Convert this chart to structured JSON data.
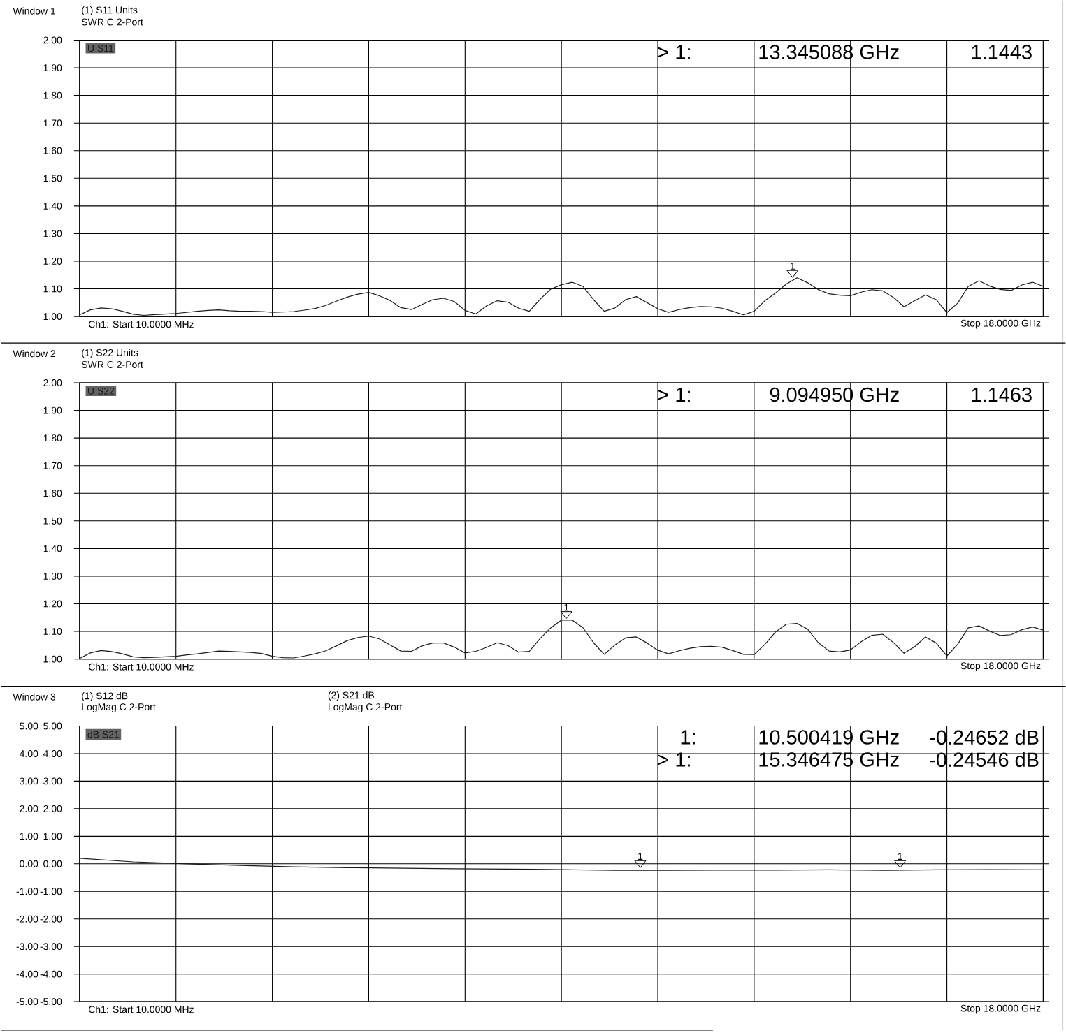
{
  "chart_data": [
    {
      "type": "line",
      "title": "Window 1",
      "subtitle": "(1) S11 Units",
      "categories": [
        null,
        null,
        null,
        null,
        null,
        null,
        null,
        null,
        null,
        null,
        null,
        null,
        null,
        null,
        null,
        null,
        null,
        null,
        null,
        null,
        null,
        null,
        null,
        null,
        null,
        null,
        null,
        null,
        null,
        null,
        null,
        null,
        null,
        null,
        null,
        null,
        null,
        null,
        null,
        null,
        null,
        null,
        null,
        null,
        null,
        null,
        null,
        null,
        null,
        null,
        null,
        null,
        null,
        null,
        null,
        null,
        null,
        null,
        null,
        null,
        null,
        null,
        null,
        null,
        null,
        null,
        null,
        null,
        null,
        null,
        null,
        null,
        null,
        null,
        null,
        null,
        null,
        null,
        null,
        null,
        null,
        null,
        null,
        null,
        null,
        null,
        null,
        null,
        null,
        null,
        null
      ],
      "series": [
        {
          "name": "U S11",
          "color": "#1a1a1a",
          "values": [
            1.006,
            1.024,
            1.031,
            1.028,
            1.019,
            1.008,
            1.004,
            1.007,
            1.009,
            1.011,
            1.015,
            1.019,
            1.022,
            1.024,
            1.021,
            1.019,
            1.019,
            1.018,
            1.015,
            1.016,
            1.018,
            1.023,
            1.029,
            1.04,
            1.056,
            1.07,
            1.081,
            1.087,
            1.075,
            1.058,
            1.032,
            1.025,
            1.044,
            1.061,
            1.066,
            1.054,
            1.022,
            1.009,
            1.038,
            1.057,
            1.052,
            1.03,
            1.019,
            1.062,
            1.099,
            1.115,
            1.124,
            1.109,
            1.061,
            1.019,
            1.031,
            1.061,
            1.072,
            1.05,
            1.028,
            1.015,
            1.025,
            1.032,
            1.036,
            1.035,
            1.03,
            1.019,
            1.006,
            1.019,
            1.057,
            1.085,
            1.117,
            1.14,
            1.122,
            1.097,
            1.082,
            1.077,
            1.075,
            1.088,
            1.097,
            1.093,
            1.069,
            1.035,
            1.057,
            1.078,
            1.061,
            1.014,
            1.048,
            1.109,
            1.129,
            1.11,
            1.098,
            1.094,
            1.114,
            1.124,
            1.109
          ]
        }
      ],
      "ylim": [
        1.0,
        2.0
      ],
      "yticks": [
        {
          "value": 1.0,
          "label": "1.00"
        },
        {
          "value": 1.1,
          "label": "1.10"
        },
        {
          "value": 1.2,
          "label": "1.20"
        },
        {
          "value": 1.3,
          "label": "1.30"
        },
        {
          "value": 1.4,
          "label": "1.40"
        },
        {
          "value": 1.5,
          "label": "1.50"
        },
        {
          "value": 1.6,
          "label": "1.60"
        },
        {
          "value": 1.7,
          "label": "1.70"
        },
        {
          "value": 1.8,
          "label": "1.80"
        },
        {
          "value": 1.9,
          "label": "1.90"
        },
        {
          "value": 2.0,
          "label": "2.00"
        }
      ],
      "grid": true,
      "annotations": [
        "SWR C  2-Port",
        "> 1:",
        "13.345088 GHz",
        "1.1443",
        "Ch1: Start 10.0000 MHz",
        "Stop 18.0000 GHz",
        "1"
      ]
    },
    {
      "type": "line",
      "title": "Window 2",
      "subtitle": "(1) S22 Units",
      "categories": [
        null,
        null,
        null,
        null,
        null,
        null,
        null,
        null,
        null,
        null,
        null,
        null,
        null,
        null,
        null,
        null,
        null,
        null,
        null,
        null,
        null,
        null,
        null,
        null,
        null,
        null,
        null,
        null,
        null,
        null,
        null,
        null,
        null,
        null,
        null,
        null,
        null,
        null,
        null,
        null,
        null,
        null,
        null,
        null,
        null,
        null,
        null,
        null,
        null,
        null,
        null,
        null,
        null,
        null,
        null,
        null,
        null,
        null,
        null,
        null,
        null,
        null,
        null,
        null,
        null,
        null,
        null,
        null,
        null,
        null,
        null,
        null,
        null,
        null,
        null,
        null,
        null,
        null,
        null,
        null,
        null,
        null,
        null,
        null,
        null,
        null,
        null,
        null,
        null,
        null,
        null
      ],
      "series": [
        {
          "name": "U S22",
          "color": "#1a1a1a",
          "values": [
            1.002,
            1.022,
            1.031,
            1.027,
            1.019,
            1.008,
            1.005,
            1.006,
            1.008,
            1.01,
            1.015,
            1.019,
            1.024,
            1.029,
            1.028,
            1.026,
            1.024,
            1.02,
            1.01,
            1.005,
            1.004,
            1.011,
            1.019,
            1.03,
            1.048,
            1.067,
            1.078,
            1.083,
            1.073,
            1.051,
            1.029,
            1.028,
            1.048,
            1.058,
            1.058,
            1.043,
            1.022,
            1.028,
            1.042,
            1.059,
            1.049,
            1.025,
            1.028,
            1.074,
            1.113,
            1.141,
            1.141,
            1.114,
            1.059,
            1.017,
            1.051,
            1.077,
            1.08,
            1.058,
            1.032,
            1.019,
            1.03,
            1.039,
            1.045,
            1.046,
            1.043,
            1.031,
            1.017,
            1.016,
            1.053,
            1.098,
            1.126,
            1.129,
            1.108,
            1.059,
            1.029,
            1.026,
            1.033,
            1.063,
            1.086,
            1.09,
            1.06,
            1.021,
            1.045,
            1.08,
            1.058,
            1.011,
            1.053,
            1.113,
            1.12,
            1.101,
            1.085,
            1.088,
            1.106,
            1.116,
            1.105
          ]
        }
      ],
      "ylim": [
        1.0,
        2.0
      ],
      "yticks": [
        {
          "value": 1.0,
          "label": "1.00"
        },
        {
          "value": 1.1,
          "label": "1.10"
        },
        {
          "value": 1.2,
          "label": "1.20"
        },
        {
          "value": 1.3,
          "label": "1.30"
        },
        {
          "value": 1.4,
          "label": "1.40"
        },
        {
          "value": 1.5,
          "label": "1.50"
        },
        {
          "value": 1.6,
          "label": "1.60"
        },
        {
          "value": 1.7,
          "label": "1.70"
        },
        {
          "value": 1.8,
          "label": "1.80"
        },
        {
          "value": 1.9,
          "label": "1.90"
        },
        {
          "value": 2.0,
          "label": "2.00"
        }
      ],
      "grid": true,
      "annotations": [
        "SWR C  2-Port",
        "> 1:",
        "9.094950 GHz",
        "1.1463",
        "Ch1: Start 10.0000 MHz",
        "Stop 18.0000 GHz",
        "1"
      ]
    },
    {
      "type": "line",
      "title": "Window 3",
      "subtitle": "(1) S12 dB",
      "categories": [
        null,
        null,
        null,
        null,
        null,
        null,
        null,
        null,
        null,
        null,
        null,
        null,
        null,
        null,
        null,
        null,
        null,
        null,
        null
      ],
      "series": [
        {
          "name": "dB S21",
          "color": "#1a1a1a",
          "values": [
            0.2,
            0.07,
            0.0,
            -0.06,
            -0.11,
            -0.14,
            -0.16,
            -0.18,
            -0.19,
            -0.21,
            -0.24,
            -0.24,
            -0.23,
            -0.23,
            -0.22,
            -0.24,
            -0.22,
            -0.21,
            -0.22
          ]
        }
      ],
      "ylim": [
        -5.0,
        5.0
      ],
      "yticks": [
        {
          "value": -5,
          "label": "-5.00"
        },
        {
          "value": -4,
          "label": "-4.00"
        },
        {
          "value": -3,
          "label": "-3.00"
        },
        {
          "value": -2,
          "label": "-2.00"
        },
        {
          "value": -1,
          "label": "-1.00"
        },
        {
          "value": 0,
          "label": "0.00"
        },
        {
          "value": 1,
          "label": "1.00"
        },
        {
          "value": 2,
          "label": "2.00"
        },
        {
          "value": 3,
          "label": "3.00"
        },
        {
          "value": 4,
          "label": "4.00"
        },
        {
          "value": 5,
          "label": "5.00"
        }
      ],
      "y2lim": [
        -5.0,
        5.0
      ],
      "y2ticks": [
        {
          "value": -5,
          "label": "-5.00"
        },
        {
          "value": -4,
          "label": "-4.00"
        },
        {
          "value": -3,
          "label": "-3.00"
        },
        {
          "value": -2,
          "label": "-2.00"
        },
        {
          "value": -1,
          "label": "-1.00"
        },
        {
          "value": 0,
          "label": "0.00"
        },
        {
          "value": 1,
          "label": "1.00"
        },
        {
          "value": 2,
          "label": "2.00"
        },
        {
          "value": 3,
          "label": "3.00"
        },
        {
          "value": 4,
          "label": "4.00"
        },
        {
          "value": 5,
          "label": "5.00"
        }
      ],
      "grid": true,
      "annotations": [
        "LogMag C  2-Port",
        "(2) S21 dB",
        "LogMag C  2-Port",
        "1:",
        "10.500419 GHz",
        "-0.24652 dB",
        "> 1:",
        "15.346475 GHz",
        "-0.24546 dB",
        "Ch1: Start 10.0000 MHz",
        "Stop 18.0000 GHz",
        "1",
        "1"
      ]
    }
  ]
}
